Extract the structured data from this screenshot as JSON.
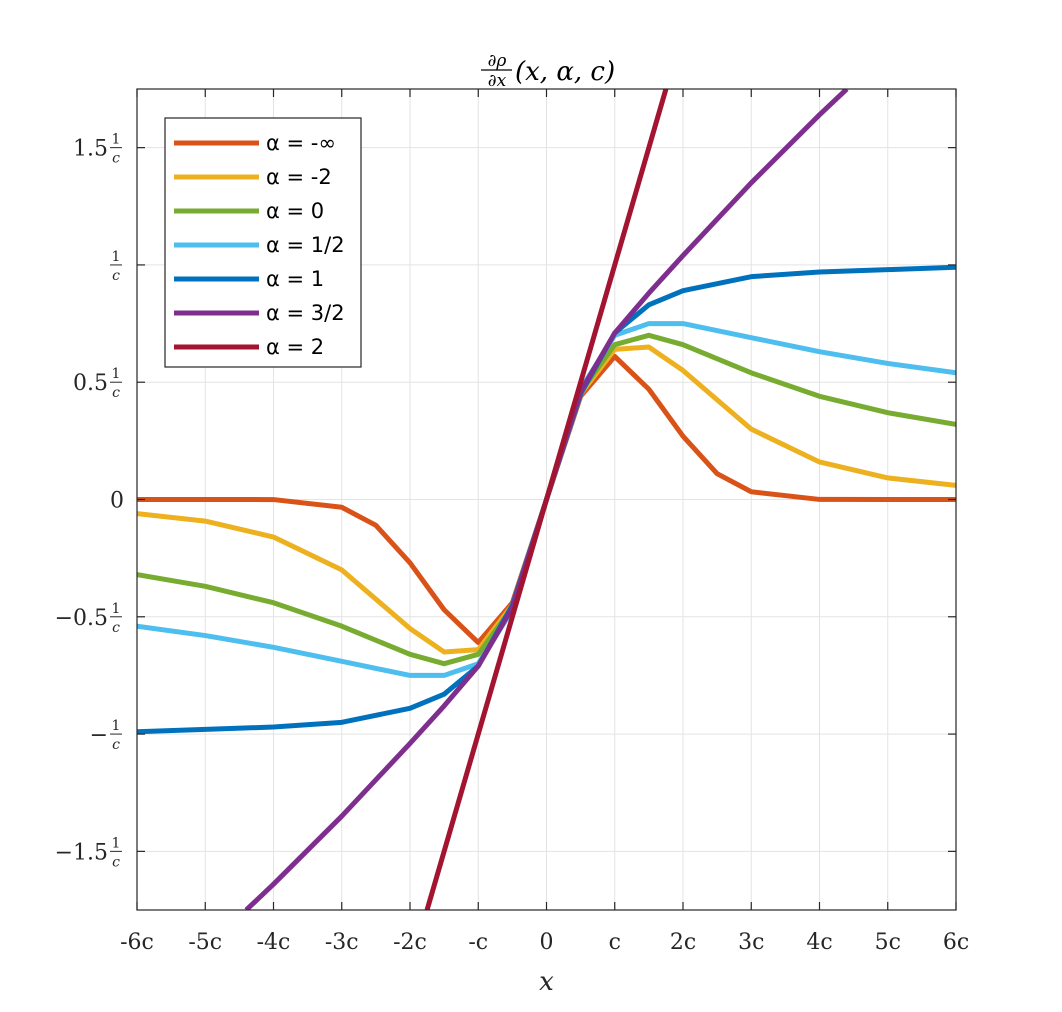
{
  "chart_data": {
    "type": "line",
    "title": {
      "frac_num": "∂ρ",
      "frac_den": "∂x",
      "args": "(x, α, c)"
    },
    "xlabel": "x",
    "ylabel": "",
    "xlim": [
      -6,
      6
    ],
    "ylim": [
      -1.75,
      1.75
    ],
    "grid": true,
    "legend_position": "top-left",
    "x_ticks": [
      {
        "value": -6,
        "label": "-6c"
      },
      {
        "value": -5,
        "label": "-5c"
      },
      {
        "value": -4,
        "label": "-4c"
      },
      {
        "value": -3,
        "label": "-3c"
      },
      {
        "value": -2,
        "label": "-2c"
      },
      {
        "value": -1,
        "label": "-c"
      },
      {
        "value": 0,
        "label": "0"
      },
      {
        "value": 1,
        "label": "c"
      },
      {
        "value": 2,
        "label": "2c"
      },
      {
        "value": 3,
        "label": "3c"
      },
      {
        "value": 4,
        "label": "4c"
      },
      {
        "value": 5,
        "label": "5c"
      },
      {
        "value": 6,
        "label": "6c"
      }
    ],
    "y_ticks": [
      {
        "value": 1.5,
        "prefix": "1.5",
        "num": "1",
        "den": "c"
      },
      {
        "value": 1.0,
        "prefix": "",
        "num": "1",
        "den": "c"
      },
      {
        "value": 0.5,
        "prefix": "0.5",
        "num": "1",
        "den": "c"
      },
      {
        "value": 0,
        "prefix": "0",
        "num": "",
        "den": ""
      },
      {
        "value": -0.5,
        "prefix": "−0.5",
        "num": "1",
        "den": "c"
      },
      {
        "value": -1.0,
        "prefix": "−",
        "num": "1",
        "den": "c"
      },
      {
        "value": -1.5,
        "prefix": "−1.5",
        "num": "1",
        "den": "c"
      }
    ],
    "series": [
      {
        "name": "α = -∞",
        "color": "#D95319",
        "x": [
          -6,
          -4,
          -3,
          -2.5,
          -2,
          -1.5,
          -1,
          -0.5,
          0,
          0.5,
          1,
          1.5,
          2,
          2.5,
          3,
          4,
          6
        ],
        "y": [
          0,
          -0.0003,
          -0.033,
          -0.11,
          -0.27,
          -0.47,
          -0.61,
          -0.44,
          0,
          0.44,
          0.61,
          0.47,
          0.27,
          0.11,
          0.033,
          0.0003,
          0
        ]
      },
      {
        "name": "α = -2",
        "color": "#EDB120",
        "x": [
          -6,
          -5,
          -4,
          -3,
          -2,
          -1.5,
          -1,
          -0.5,
          0,
          0.5,
          1,
          1.5,
          2,
          3,
          4,
          5,
          6
        ],
        "y": [
          -0.06,
          -0.092,
          -0.16,
          -0.3,
          -0.55,
          -0.65,
          -0.64,
          -0.45,
          0,
          0.45,
          0.64,
          0.65,
          0.55,
          0.3,
          0.16,
          0.092,
          0.06
        ]
      },
      {
        "name": "α = 0",
        "color": "#77AC30",
        "x": [
          -6,
          -5,
          -4,
          -3,
          -2,
          -1.5,
          -1,
          -0.5,
          0,
          0.5,
          1,
          1.5,
          2,
          3,
          4,
          5,
          6
        ],
        "y": [
          -0.32,
          -0.37,
          -0.44,
          -0.54,
          -0.66,
          -0.7,
          -0.66,
          -0.46,
          0,
          0.46,
          0.66,
          0.7,
          0.66,
          0.54,
          0.44,
          0.37,
          0.32
        ]
      },
      {
        "name": "α = 1/2",
        "color": "#4DBEEE",
        "x": [
          -6,
          -5,
          -4,
          -3,
          -2,
          -1.5,
          -1,
          -0.5,
          0,
          0.5,
          1,
          1.5,
          2,
          3,
          4,
          5,
          6
        ],
        "y": [
          -0.54,
          -0.58,
          -0.63,
          -0.69,
          -0.75,
          -0.75,
          -0.7,
          -0.47,
          0,
          0.47,
          0.7,
          0.75,
          0.75,
          0.69,
          0.63,
          0.58,
          0.54
        ]
      },
      {
        "name": "α = 1",
        "color": "#0072BD",
        "x": [
          -6,
          -5,
          -4,
          -3,
          -2,
          -1.5,
          -1,
          -0.5,
          0,
          0.5,
          1,
          1.5,
          2,
          3,
          4,
          5,
          6
        ],
        "y": [
          -0.99,
          -0.98,
          -0.97,
          -0.95,
          -0.89,
          -0.83,
          -0.71,
          -0.45,
          0,
          0.45,
          0.71,
          0.83,
          0.89,
          0.95,
          0.97,
          0.98,
          0.99
        ]
      },
      {
        "name": "α = 3/2",
        "color": "#7E2F8E",
        "x": [
          -4.4,
          -4,
          -3,
          -2,
          -1.5,
          -1,
          -0.5,
          0,
          0.5,
          1,
          1.5,
          2,
          3,
          4,
          4.4
        ],
        "y": [
          -1.75,
          -1.64,
          -1.35,
          -1.04,
          -0.88,
          -0.71,
          -0.46,
          0,
          0.46,
          0.71,
          0.88,
          1.04,
          1.35,
          1.64,
          1.75
        ]
      },
      {
        "name": "α = 2",
        "color": "#A2142F",
        "x": [
          -1.75,
          1.75
        ],
        "y": [
          -1.75,
          1.75
        ]
      }
    ]
  }
}
